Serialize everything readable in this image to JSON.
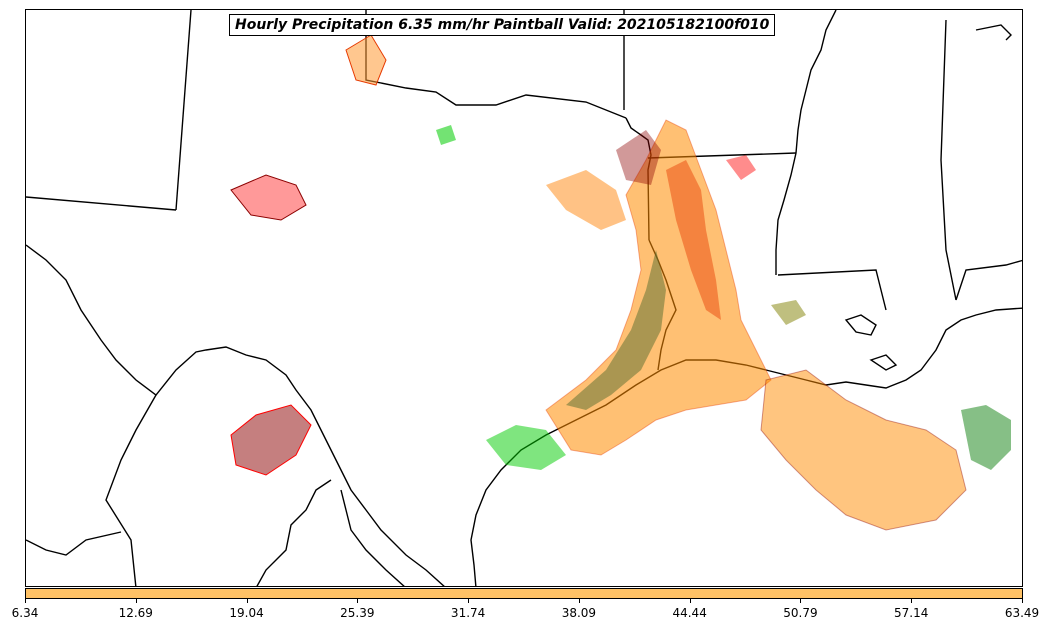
{
  "title": "Hourly Precipitation 6.35 mm/hr Paintball Valid: 202105182100f010",
  "colorbar": {
    "color": "#ffc266",
    "tick_labels": [
      "6.34",
      "12.69",
      "19.04",
      "25.39",
      "31.74",
      "38.09",
      "44.44",
      "50.79",
      "57.14",
      "63.49"
    ]
  },
  "member_colors": [
    "#ff8c00",
    "#e63900",
    "#ff0000",
    "#8b0000",
    "#556b2f",
    "#808000",
    "#228b22",
    "#00cc00",
    "#1a1a1a",
    "#ff9933",
    "#b8860b"
  ]
}
